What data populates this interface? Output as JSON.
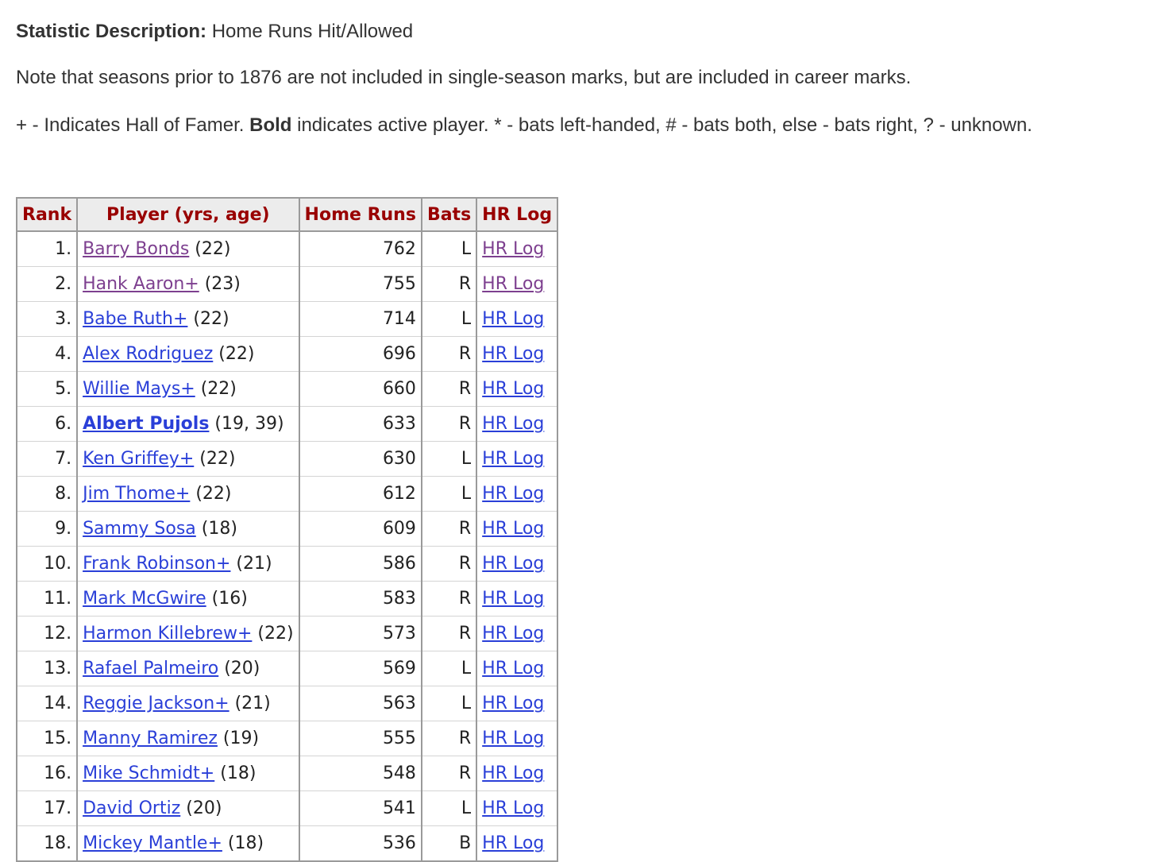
{
  "description": {
    "label": "Statistic Description:",
    "value": " Home Runs Hit/Allowed"
  },
  "note": "Note that seasons prior to 1876 are not included in single-season marks, but are included in career marks.",
  "legend": {
    "part1": "+ - Indicates Hall of Famer. ",
    "bold_word": "Bold",
    "part2": " indicates active player. * - bats left-handed, # - bats both, else - bats right, ? - unknown."
  },
  "table": {
    "headers": {
      "rank": "Rank",
      "player": "Player (yrs, age)",
      "home_runs": "Home Runs",
      "bats": "Bats",
      "hr_log": "HR Log"
    },
    "link_color": "#2a3fd8",
    "visited_link_color": "#7d3f8f",
    "header_text_color": "#990000",
    "rows": [
      {
        "rank": "1.",
        "name": "Barry Bonds",
        "extra": " (22)",
        "hr": "762",
        "bats": "L",
        "log": "HR Log",
        "visited": true,
        "active": false
      },
      {
        "rank": "2.",
        "name": "Hank Aaron+",
        "extra": " (23)",
        "hr": "755",
        "bats": "R",
        "log": "HR Log",
        "visited": true,
        "active": false
      },
      {
        "rank": "3.",
        "name": "Babe Ruth+",
        "extra": " (22)",
        "hr": "714",
        "bats": "L",
        "log": "HR Log",
        "visited": false,
        "active": false
      },
      {
        "rank": "4.",
        "name": "Alex Rodriguez",
        "extra": " (22)",
        "hr": "696",
        "bats": "R",
        "log": "HR Log",
        "visited": false,
        "active": false
      },
      {
        "rank": "5.",
        "name": "Willie Mays+",
        "extra": " (22)",
        "hr": "660",
        "bats": "R",
        "log": "HR Log",
        "visited": false,
        "active": false
      },
      {
        "rank": "6.",
        "name": "Albert Pujols",
        "extra": " (19, 39)",
        "hr": "633",
        "bats": "R",
        "log": "HR Log",
        "visited": false,
        "active": true
      },
      {
        "rank": "7.",
        "name": "Ken Griffey+",
        "extra": " (22)",
        "hr": "630",
        "bats": "L",
        "log": "HR Log",
        "visited": false,
        "active": false
      },
      {
        "rank": "8.",
        "name": "Jim Thome+",
        "extra": " (22)",
        "hr": "612",
        "bats": "L",
        "log": "HR Log",
        "visited": false,
        "active": false
      },
      {
        "rank": "9.",
        "name": "Sammy Sosa",
        "extra": " (18)",
        "hr": "609",
        "bats": "R",
        "log": "HR Log",
        "visited": false,
        "active": false
      },
      {
        "rank": "10.",
        "name": "Frank Robinson+",
        "extra": " (21)",
        "hr": "586",
        "bats": "R",
        "log": "HR Log",
        "visited": false,
        "active": false
      },
      {
        "rank": "11.",
        "name": "Mark McGwire",
        "extra": " (16)",
        "hr": "583",
        "bats": "R",
        "log": "HR Log",
        "visited": false,
        "active": false
      },
      {
        "rank": "12.",
        "name": "Harmon Killebrew+",
        "extra": " (22)",
        "hr": "573",
        "bats": "R",
        "log": "HR Log",
        "visited": false,
        "active": false
      },
      {
        "rank": "13.",
        "name": "Rafael Palmeiro",
        "extra": " (20)",
        "hr": "569",
        "bats": "L",
        "log": "HR Log",
        "visited": false,
        "active": false
      },
      {
        "rank": "14.",
        "name": "Reggie Jackson+",
        "extra": " (21)",
        "hr": "563",
        "bats": "L",
        "log": "HR Log",
        "visited": false,
        "active": false
      },
      {
        "rank": "15.",
        "name": "Manny Ramirez",
        "extra": " (19)",
        "hr": "555",
        "bats": "R",
        "log": "HR Log",
        "visited": false,
        "active": false
      },
      {
        "rank": "16.",
        "name": "Mike Schmidt+",
        "extra": " (18)",
        "hr": "548",
        "bats": "R",
        "log": "HR Log",
        "visited": false,
        "active": false
      },
      {
        "rank": "17.",
        "name": "David Ortiz",
        "extra": " (20)",
        "hr": "541",
        "bats": "L",
        "log": "HR Log",
        "visited": false,
        "active": false
      },
      {
        "rank": "18.",
        "name": "Mickey Mantle+",
        "extra": " (18)",
        "hr": "536",
        "bats": "B",
        "log": "HR Log",
        "visited": false,
        "active": false
      }
    ]
  }
}
